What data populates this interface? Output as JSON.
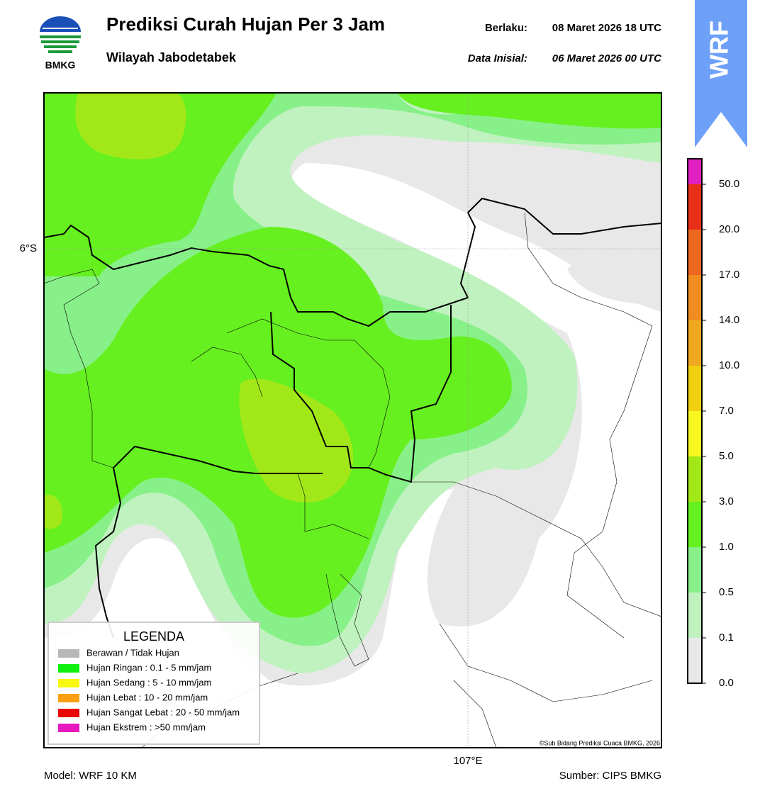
{
  "header": {
    "logo_text": "BMKG",
    "title": "Prediksi Curah Hujan Per 3 Jam",
    "subtitle": "Wilayah Jabodetabek",
    "valid_label": "Berlaku:",
    "valid_value": "08 Maret 2026 18 UTC",
    "init_label": "Data Inisial:",
    "init_value": "06 Maret 2026 00 UTC",
    "badge": "WRF"
  },
  "map": {
    "lat_label": "6°S",
    "lon_label": "107°E",
    "credit": "©Sub Bidang Prediksi Cuaca BMKG, 2026"
  },
  "legend": {
    "title": "LEGENDA",
    "items": [
      {
        "label": "Berawan / Tidak Hujan",
        "color": "#b8b8b8"
      },
      {
        "label": "Hujan Ringan : 0.1 - 5 mm/jam",
        "color": "#10f010"
      },
      {
        "label": "Hujan Sedang : 5 - 10 mm/jam",
        "color": "#f8f810"
      },
      {
        "label": "Hujan Lebat : 10 - 20 mm/jam",
        "color": "#f8a010"
      },
      {
        "label": "Hujan Sangat Lebat : 20 - 50 mm/jam",
        "color": "#e80808"
      },
      {
        "label": "Hujan Ekstrem : >50 mm/jam",
        "color": "#e818c0"
      }
    ]
  },
  "colorbar": {
    "labels": [
      "0.0",
      "0.1",
      "0.5",
      "1.0",
      "3.0",
      "5.0",
      "7.0",
      "10.0",
      "14.0",
      "17.0",
      "20.0",
      "50.0"
    ],
    "colors": [
      "#e8e8e8",
      "#c0f2c0",
      "#88f088",
      "#66f020",
      "#a2e818",
      "#f8f820",
      "#f0d010",
      "#f0a820",
      "#f08c20",
      "#ec6820",
      "#e83018",
      "#e020c0"
    ]
  },
  "footer": {
    "model": "Model: WRF 10 KM",
    "source": "Sumber: CIPS BMKG"
  }
}
